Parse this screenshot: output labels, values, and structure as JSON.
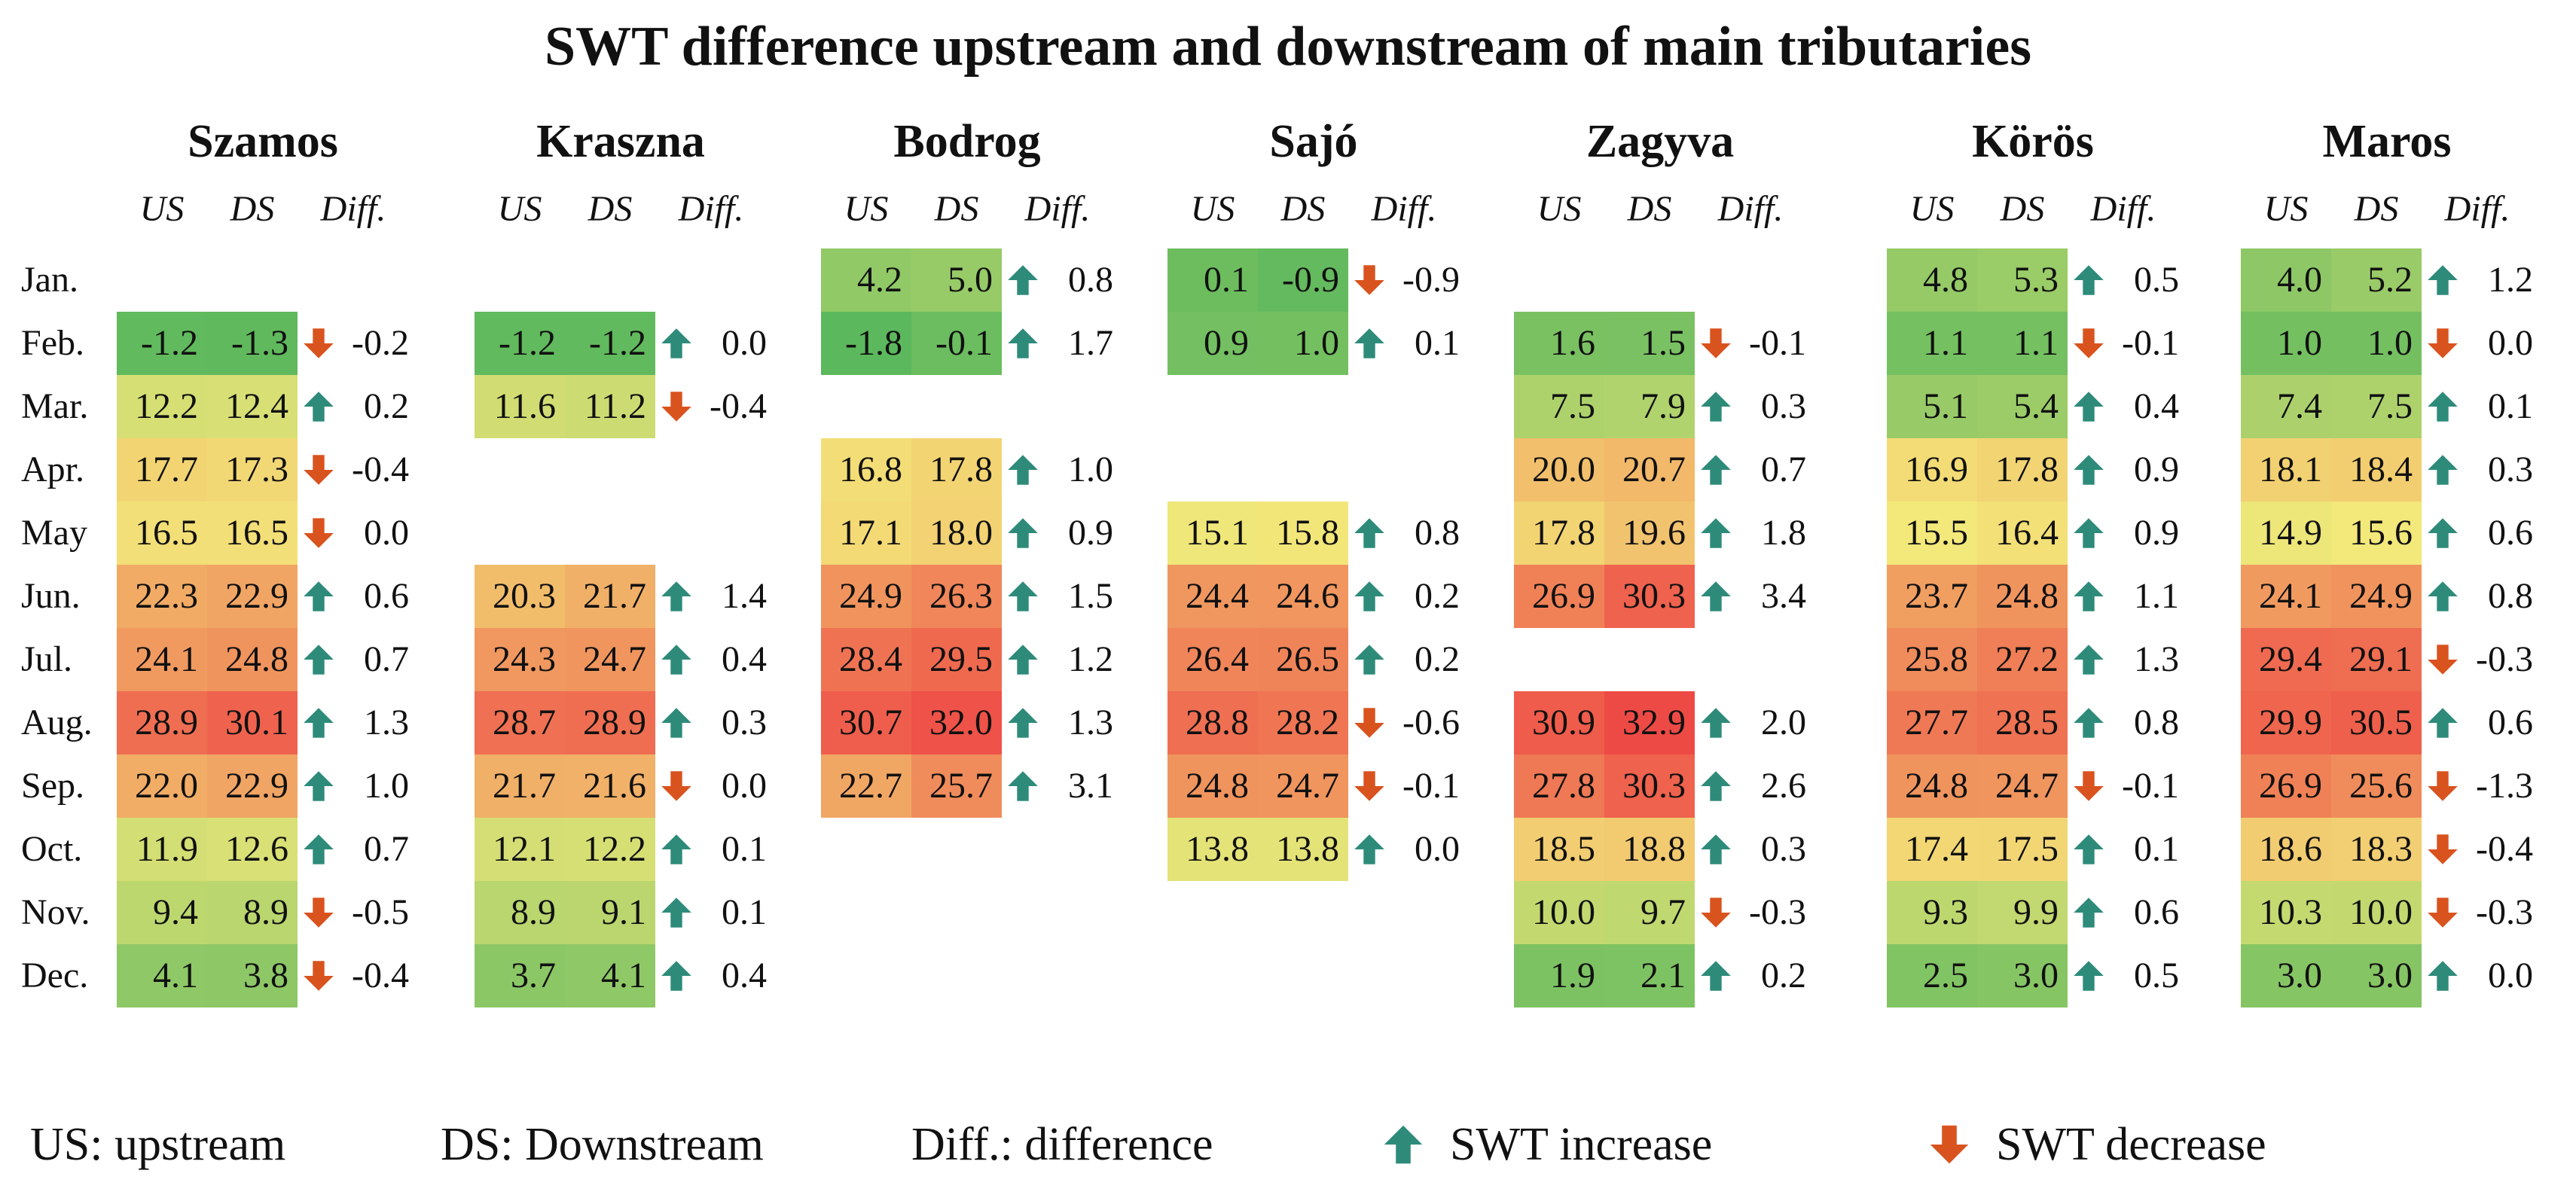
{
  "chart_data": {
    "type": "table",
    "title": "SWT difference upstream and downstream of main tributaries",
    "column_headers": {
      "us": "US",
      "ds": "DS",
      "diff": "Diff."
    },
    "months": [
      "Jan.",
      "Feb.",
      "Mar.",
      "Apr.",
      "May",
      "Jun.",
      "Jul.",
      "Aug.",
      "Sep.",
      "Oct.",
      "Nov.",
      "Dec."
    ],
    "color_scale": {
      "min": -1.8,
      "max": 32.9,
      "low_color": "#5cb85c",
      "mid_color": "#f3e87a",
      "high_color": "#ee4a45"
    },
    "increase_color": "#2e8b7a",
    "decrease_color": "#d9531e",
    "rivers": [
      {
        "name": "Szamos",
        "data": [
          null,
          {
            "us": "-1.2",
            "ds": "-1.3",
            "diff": "-0.2"
          },
          {
            "us": "12.2",
            "ds": "12.4",
            "diff": "0.2"
          },
          {
            "us": "17.7",
            "ds": "17.3",
            "diff": "-0.4"
          },
          {
            "us": "16.5",
            "ds": "16.5",
            "diff": "0.0",
            "dir": "down"
          },
          {
            "us": "22.3",
            "ds": "22.9",
            "diff": "0.6"
          },
          {
            "us": "24.1",
            "ds": "24.8",
            "diff": "0.7"
          },
          {
            "us": "28.9",
            "ds": "30.1",
            "diff": "1.3"
          },
          {
            "us": "22.0",
            "ds": "22.9",
            "diff": "1.0"
          },
          {
            "us": "11.9",
            "ds": "12.6",
            "diff": "0.7"
          },
          {
            "us": "9.4",
            "ds": "8.9",
            "diff": "-0.5"
          },
          {
            "us": "4.1",
            "ds": "3.8",
            "diff": "-0.4"
          }
        ]
      },
      {
        "name": "Kraszna",
        "data": [
          null,
          {
            "us": "-1.2",
            "ds": "-1.2",
            "diff": "0.0",
            "dir": "up"
          },
          {
            "us": "11.6",
            "ds": "11.2",
            "diff": "-0.4"
          },
          null,
          null,
          {
            "us": "20.3",
            "ds": "21.7",
            "diff": "1.4"
          },
          {
            "us": "24.3",
            "ds": "24.7",
            "diff": "0.4"
          },
          {
            "us": "28.7",
            "ds": "28.9",
            "diff": "0.3"
          },
          {
            "us": "21.7",
            "ds": "21.6",
            "diff": "0.0",
            "dir": "down"
          },
          {
            "us": "12.1",
            "ds": "12.2",
            "diff": "0.1"
          },
          {
            "us": "8.9",
            "ds": "9.1",
            "diff": "0.1"
          },
          {
            "us": "3.7",
            "ds": "4.1",
            "diff": "0.4"
          }
        ]
      },
      {
        "name": "Bodrog",
        "data": [
          {
            "us": "4.2",
            "ds": "5.0",
            "diff": "0.8"
          },
          {
            "us": "-1.8",
            "ds": "-0.1",
            "diff": "1.7"
          },
          null,
          {
            "us": "16.8",
            "ds": "17.8",
            "diff": "1.0"
          },
          {
            "us": "17.1",
            "ds": "18.0",
            "diff": "0.9"
          },
          {
            "us": "24.9",
            "ds": "26.3",
            "diff": "1.5"
          },
          {
            "us": "28.4",
            "ds": "29.5",
            "diff": "1.2"
          },
          {
            "us": "30.7",
            "ds": "32.0",
            "diff": "1.3"
          },
          {
            "us": "22.7",
            "ds": "25.7",
            "diff": "3.1"
          },
          null,
          null,
          null
        ]
      },
      {
        "name": "Sajó",
        "data": [
          {
            "us": "0.1",
            "ds": "-0.9",
            "diff": "-0.9"
          },
          {
            "us": "0.9",
            "ds": "1.0",
            "diff": "0.1"
          },
          null,
          null,
          {
            "us": "15.1",
            "ds": "15.8",
            "diff": "0.8"
          },
          {
            "us": "24.4",
            "ds": "24.6",
            "diff": "0.2"
          },
          {
            "us": "26.4",
            "ds": "26.5",
            "diff": "0.2"
          },
          {
            "us": "28.8",
            "ds": "28.2",
            "diff": "-0.6"
          },
          {
            "us": "24.8",
            "ds": "24.7",
            "diff": "-0.1"
          },
          {
            "us": "13.8",
            "ds": "13.8",
            "diff": "0.0",
            "dir": "up"
          },
          null,
          null
        ]
      },
      {
        "name": "Zagyva",
        "data": [
          null,
          {
            "us": "1.6",
            "ds": "1.5",
            "diff": "-0.1"
          },
          {
            "us": "7.5",
            "ds": "7.9",
            "diff": "0.3"
          },
          {
            "us": "20.0",
            "ds": "20.7",
            "diff": "0.7"
          },
          {
            "us": "17.8",
            "ds": "19.6",
            "diff": "1.8"
          },
          {
            "us": "26.9",
            "ds": "30.3",
            "diff": "3.4"
          },
          null,
          {
            "us": "30.9",
            "ds": "32.9",
            "diff": "2.0"
          },
          {
            "us": "27.8",
            "ds": "30.3",
            "diff": "2.6"
          },
          {
            "us": "18.5",
            "ds": "18.8",
            "diff": "0.3"
          },
          {
            "us": "10.0",
            "ds": "9.7",
            "diff": "-0.3"
          },
          {
            "us": "1.9",
            "ds": "2.1",
            "diff": "0.2"
          }
        ]
      },
      {
        "name": "Körös",
        "data": [
          {
            "us": "4.8",
            "ds": "5.3",
            "diff": "0.5"
          },
          {
            "us": "1.1",
            "ds": "1.1",
            "diff": "-0.1"
          },
          {
            "us": "5.1",
            "ds": "5.4",
            "diff": "0.4"
          },
          {
            "us": "16.9",
            "ds": "17.8",
            "diff": "0.9"
          },
          {
            "us": "15.5",
            "ds": "16.4",
            "diff": "0.9"
          },
          {
            "us": "23.7",
            "ds": "24.8",
            "diff": "1.1"
          },
          {
            "us": "25.8",
            "ds": "27.2",
            "diff": "1.3"
          },
          {
            "us": "27.7",
            "ds": "28.5",
            "diff": "0.8"
          },
          {
            "us": "24.8",
            "ds": "24.7",
            "diff": "-0.1"
          },
          {
            "us": "17.4",
            "ds": "17.5",
            "diff": "0.1"
          },
          {
            "us": "9.3",
            "ds": "9.9",
            "diff": "0.6"
          },
          {
            "us": "2.5",
            "ds": "3.0",
            "diff": "0.5"
          }
        ]
      },
      {
        "name": "Maros",
        "data": [
          {
            "us": "4.0",
            "ds": "5.2",
            "diff": "1.2"
          },
          {
            "us": "1.0",
            "ds": "1.0",
            "diff": "0.0",
            "dir": "down"
          },
          {
            "us": "7.4",
            "ds": "7.5",
            "diff": "0.1"
          },
          {
            "us": "18.1",
            "ds": "18.4",
            "diff": "0.3"
          },
          {
            "us": "14.9",
            "ds": "15.6",
            "diff": "0.6"
          },
          {
            "us": "24.1",
            "ds": "24.9",
            "diff": "0.8"
          },
          {
            "us": "29.4",
            "ds": "29.1",
            "diff": "-0.3"
          },
          {
            "us": "29.9",
            "ds": "30.5",
            "diff": "0.6"
          },
          {
            "us": "26.9",
            "ds": "25.6",
            "diff": "-1.3"
          },
          {
            "us": "18.6",
            "ds": "18.3",
            "diff": "-0.4"
          },
          {
            "us": "10.3",
            "ds": "10.0",
            "diff": "-0.3"
          },
          {
            "us": "3.0",
            "ds": "3.0",
            "diff": "0.0",
            "dir": "up"
          }
        ]
      }
    ],
    "legend": {
      "us": "US: upstream",
      "ds": "DS: Downstream",
      "diff": "Diff.: difference",
      "increase": "SWT increase",
      "decrease": "SWT decrease"
    }
  }
}
